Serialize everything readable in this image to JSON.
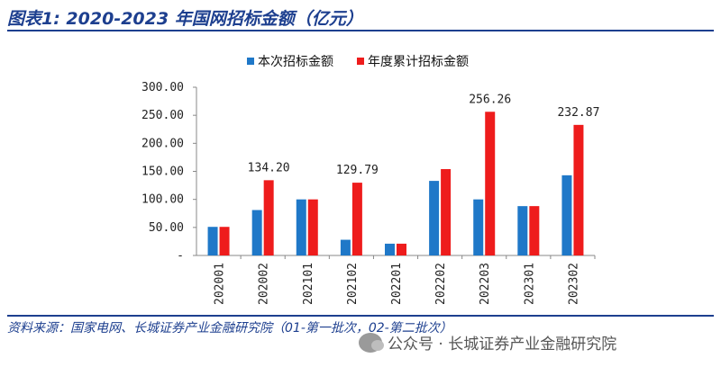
{
  "title": "图表1:  2020-2023 年国网招标金额（亿元）",
  "source": "资料来源：国家电网、长城证券产业金融研究院（01-第一批次，02-第二批次）",
  "watermark": "公众号 · 长城证券产业金融研究院",
  "icons": {
    "watermark": "wechat-icon"
  },
  "colors": {
    "series1": "#1f78c8",
    "series2": "#ee1c1c",
    "title": "#1d3f8f"
  },
  "chart_data": {
    "type": "bar",
    "title": "",
    "xlabel": "",
    "ylabel": "",
    "ylim": [
      0,
      300
    ],
    "yticks": [
      0,
      50,
      100,
      150,
      200,
      250,
      300
    ],
    "ytick_labels": [
      "-",
      "50.00",
      "100.00",
      "150.00",
      "200.00",
      "250.00",
      "300.00"
    ],
    "categories": [
      "202001",
      "202002",
      "202101",
      "202102",
      "202201",
      "202202",
      "202203",
      "202301",
      "202302"
    ],
    "series": [
      {
        "name": "本次招标金额",
        "values": [
          51,
          81,
          100,
          28,
          21,
          133,
          100,
          88,
          143
        ]
      },
      {
        "name": "年度累计招标金额",
        "values": [
          51,
          134.2,
          100,
          129.79,
          21,
          154,
          256.26,
          88,
          232.87
        ]
      }
    ],
    "data_labels": [
      {
        "category": "202002",
        "text": "134.20"
      },
      {
        "category": "202102",
        "text": "129.79"
      },
      {
        "category": "202203",
        "text": "256.26"
      },
      {
        "category": "202302",
        "text": "232.87"
      }
    ],
    "legend_position": "top",
    "grid": false
  }
}
